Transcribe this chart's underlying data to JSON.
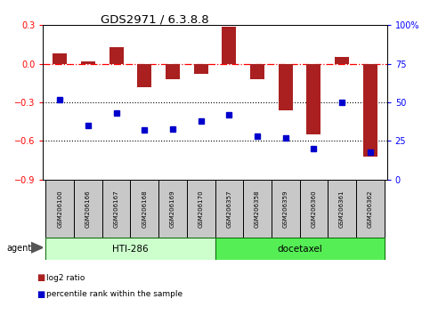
{
  "title": "GDS2971 / 6.3.8.8",
  "samples": [
    "GSM206100",
    "GSM206166",
    "GSM206167",
    "GSM206168",
    "GSM206169",
    "GSM206170",
    "GSM206357",
    "GSM206358",
    "GSM206359",
    "GSM206360",
    "GSM206361",
    "GSM206362"
  ],
  "log2_ratio": [
    0.08,
    0.02,
    0.13,
    -0.18,
    -0.12,
    -0.08,
    0.29,
    -0.12,
    -0.36,
    -0.55,
    0.05,
    -0.72
  ],
  "percentile_rank": [
    52,
    35,
    43,
    32,
    33,
    38,
    42,
    28,
    27,
    20,
    50,
    18
  ],
  "bar_color": "#aa2020",
  "dot_color": "#0000cc",
  "hti286_color": "#ccffcc",
  "docetaxel_color": "#55ee55",
  "hti286_samples": 6,
  "docetaxel_samples": 6,
  "ylim_left": [
    -0.9,
    0.3
  ],
  "ylim_right": [
    0,
    100
  ],
  "yticks_left": [
    -0.9,
    -0.6,
    -0.3,
    0.0,
    0.3
  ],
  "yticks_right": [
    0,
    25,
    50,
    75,
    100
  ],
  "hline_y": 0.0,
  "dotline1": -0.3,
  "dotline2": -0.6,
  "legend_red_label": "log2 ratio",
  "legend_blue_label": "percentile rank within the sample",
  "agent_label": "agent",
  "hti286_label": "HTI-286",
  "docetaxel_label": "docetaxel"
}
